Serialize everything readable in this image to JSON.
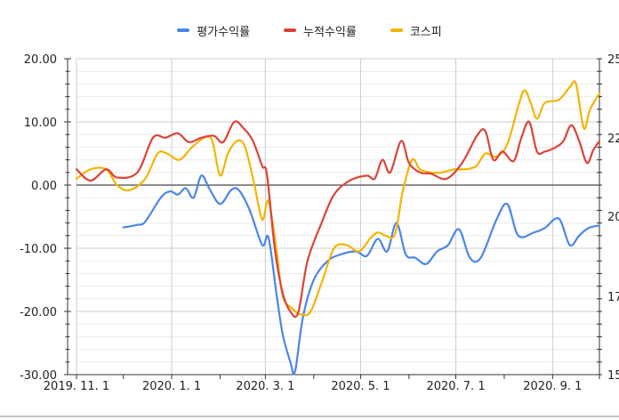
{
  "chart_data": {
    "type": "line",
    "title": "",
    "xlabel": "",
    "ylabel": "",
    "ylim": [
      -30,
      20
    ],
    "yticks": [
      -30,
      -20,
      -10,
      0,
      10,
      20
    ],
    "yticks_labels": [
      "-30.00",
      "-20.00",
      "-10.00",
      "0.00",
      "10.00",
      "20.00"
    ],
    "y2_ticks_visible": [
      "15",
      "17",
      "20",
      "22",
      "25"
    ],
    "x_range": [
      "2019-11-01",
      "2020-10-01"
    ],
    "x_ticks": [
      {
        "date": "2019-11-01",
        "label": "2019. 11. 1"
      },
      {
        "date": "2020-01-01",
        "label": "2020. 1. 1"
      },
      {
        "date": "2020-03-01",
        "label": "2020. 3. 1"
      },
      {
        "date": "2020-05-01",
        "label": "2020. 5. 1"
      },
      {
        "date": "2020-07-01",
        "label": "2020. 7. 1"
      },
      {
        "date": "2020-09-01",
        "label": "2020. 9. 1"
      }
    ],
    "grid": true,
    "legend_position": "top",
    "series": [
      {
        "name": "평가수익률",
        "color": "#4a86e8",
        "axis": "left",
        "points": [
          [
            "2019-12-01",
            -6.7
          ],
          [
            "2019-12-10",
            -6.3
          ],
          [
            "2019-12-15",
            -5.8
          ],
          [
            "2019-12-25",
            -2.0
          ],
          [
            "2019-12-31",
            -1.0
          ],
          [
            "2020-01-05",
            -1.5
          ],
          [
            "2020-01-10",
            -0.5
          ],
          [
            "2020-01-15",
            -2.0
          ],
          [
            "2020-01-20",
            1.5
          ],
          [
            "2020-01-25",
            -0.5
          ],
          [
            "2020-02-01",
            -3.0
          ],
          [
            "2020-02-08",
            -0.8
          ],
          [
            "2020-02-13",
            -0.8
          ],
          [
            "2020-02-20",
            -4.0
          ],
          [
            "2020-02-28",
            -9.5
          ],
          [
            "2020-03-03",
            -8.3
          ],
          [
            "2020-03-08",
            -17.0
          ],
          [
            "2020-03-12",
            -23.5
          ],
          [
            "2020-03-17",
            -28.0
          ],
          [
            "2020-03-20",
            -29.5
          ],
          [
            "2020-03-25",
            -21.0
          ],
          [
            "2020-04-01",
            -15.0
          ],
          [
            "2020-04-10",
            -12.0
          ],
          [
            "2020-04-18",
            -11.0
          ],
          [
            "2020-04-28",
            -10.5
          ],
          [
            "2020-05-05",
            -11.2
          ],
          [
            "2020-05-12",
            -8.5
          ],
          [
            "2020-05-18",
            -10.5
          ],
          [
            "2020-05-24",
            -6.0
          ],
          [
            "2020-05-30",
            -11.0
          ],
          [
            "2020-06-05",
            -11.5
          ],
          [
            "2020-06-12",
            -12.5
          ],
          [
            "2020-06-19",
            -10.5
          ],
          [
            "2020-06-26",
            -9.5
          ],
          [
            "2020-07-03",
            -7.0
          ],
          [
            "2020-07-10",
            -11.5
          ],
          [
            "2020-07-17",
            -11.5
          ],
          [
            "2020-07-27",
            -5.5
          ],
          [
            "2020-08-03",
            -3.0
          ],
          [
            "2020-08-10",
            -8.0
          ],
          [
            "2020-08-20",
            -7.5
          ],
          [
            "2020-08-27",
            -6.8
          ],
          [
            "2020-09-05",
            -5.3
          ],
          [
            "2020-09-12",
            -9.5
          ],
          [
            "2020-09-18",
            -8.0
          ],
          [
            "2020-09-24",
            -6.8
          ],
          [
            "2020-10-01",
            -6.4
          ]
        ]
      },
      {
        "name": "누적수익률",
        "color": "#db4437",
        "axis": "left",
        "points": [
          [
            "2019-11-01",
            2.5
          ],
          [
            "2019-11-10",
            0.7
          ],
          [
            "2019-11-20",
            2.5
          ],
          [
            "2019-11-27",
            1.2
          ],
          [
            "2019-12-10",
            2.0
          ],
          [
            "2019-12-20",
            7.5
          ],
          [
            "2019-12-28",
            7.5
          ],
          [
            "2020-01-05",
            8.2
          ],
          [
            "2020-01-12",
            6.8
          ],
          [
            "2020-01-20",
            7.5
          ],
          [
            "2020-01-28",
            7.8
          ],
          [
            "2020-02-03",
            6.8
          ],
          [
            "2020-02-10",
            10.0
          ],
          [
            "2020-02-16",
            9.0
          ],
          [
            "2020-02-22",
            7.0
          ],
          [
            "2020-02-28",
            3.0
          ],
          [
            "2020-03-02",
            1.7
          ],
          [
            "2020-03-07",
            -10.0
          ],
          [
            "2020-03-12",
            -17.0
          ],
          [
            "2020-03-17",
            -20.0
          ],
          [
            "2020-03-22",
            -20.2
          ],
          [
            "2020-03-28",
            -12.0
          ],
          [
            "2020-04-06",
            -6.0
          ],
          [
            "2020-04-14",
            -1.5
          ],
          [
            "2020-04-24",
            0.7
          ],
          [
            "2020-05-05",
            1.5
          ],
          [
            "2020-05-10",
            1.0
          ],
          [
            "2020-05-15",
            4.0
          ],
          [
            "2020-05-20",
            2.0
          ],
          [
            "2020-05-27",
            7.0
          ],
          [
            "2020-06-01",
            3.5
          ],
          [
            "2020-06-08",
            2.0
          ],
          [
            "2020-06-15",
            1.8
          ],
          [
            "2020-06-25",
            1.0
          ],
          [
            "2020-07-05",
            3.5
          ],
          [
            "2020-07-15",
            8.0
          ],
          [
            "2020-07-20",
            8.5
          ],
          [
            "2020-07-25",
            4.0
          ],
          [
            "2020-07-31",
            5.3
          ],
          [
            "2020-08-07",
            3.8
          ],
          [
            "2020-08-12",
            7.5
          ],
          [
            "2020-08-17",
            10.0
          ],
          [
            "2020-08-22",
            5.3
          ],
          [
            "2020-08-27",
            5.3
          ],
          [
            "2020-09-03",
            6.0
          ],
          [
            "2020-09-08",
            7.0
          ],
          [
            "2020-09-13",
            9.5
          ],
          [
            "2020-09-18",
            7.0
          ],
          [
            "2020-09-23",
            3.5
          ],
          [
            "2020-09-27",
            5.5
          ],
          [
            "2020-10-01",
            7.0
          ]
        ]
      },
      {
        "name": "코스피",
        "color": "#f4b400",
        "axis": "left",
        "points": [
          [
            "2019-11-01",
            1.0
          ],
          [
            "2019-11-10",
            2.5
          ],
          [
            "2019-11-20",
            2.5
          ],
          [
            "2019-11-27",
            0.0
          ],
          [
            "2019-12-05",
            -0.8
          ],
          [
            "2019-12-15",
            1.0
          ],
          [
            "2019-12-23",
            5.0
          ],
          [
            "2019-12-29",
            5.0
          ],
          [
            "2020-01-06",
            4.0
          ],
          [
            "2020-01-14",
            6.0
          ],
          [
            "2020-01-22",
            7.5
          ],
          [
            "2020-01-27",
            7.0
          ],
          [
            "2020-02-01",
            1.5
          ],
          [
            "2020-02-06",
            5.0
          ],
          [
            "2020-02-12",
            7.0
          ],
          [
            "2020-02-17",
            6.0
          ],
          [
            "2020-02-23",
            0.0
          ],
          [
            "2020-02-28",
            -5.5
          ],
          [
            "2020-03-03",
            -2.5
          ],
          [
            "2020-03-08",
            -10.0
          ],
          [
            "2020-03-12",
            -17.5
          ],
          [
            "2020-03-18",
            -19.5
          ],
          [
            "2020-03-24",
            -20.5
          ],
          [
            "2020-03-30",
            -20.0
          ],
          [
            "2020-04-06",
            -15.5
          ],
          [
            "2020-04-14",
            -10.0
          ],
          [
            "2020-04-22",
            -9.5
          ],
          [
            "2020-04-30",
            -10.5
          ],
          [
            "2020-05-07",
            -8.5
          ],
          [
            "2020-05-12",
            -7.5
          ],
          [
            "2020-05-17",
            -8.0
          ],
          [
            "2020-05-23",
            -7.8
          ],
          [
            "2020-05-28",
            -1.0
          ],
          [
            "2020-06-03",
            4.0
          ],
          [
            "2020-06-08",
            2.5
          ],
          [
            "2020-06-15",
            2.0
          ],
          [
            "2020-06-22",
            2.0
          ],
          [
            "2020-06-30",
            2.5
          ],
          [
            "2020-07-07",
            2.5
          ],
          [
            "2020-07-14",
            3.0
          ],
          [
            "2020-07-20",
            5.0
          ],
          [
            "2020-07-27",
            4.5
          ],
          [
            "2020-08-03",
            6.5
          ],
          [
            "2020-08-10",
            12.5
          ],
          [
            "2020-08-14",
            15.0
          ],
          [
            "2020-08-18",
            13.0
          ],
          [
            "2020-08-22",
            10.5
          ],
          [
            "2020-08-27",
            13.0
          ],
          [
            "2020-09-05",
            13.5
          ],
          [
            "2020-09-12",
            15.5
          ],
          [
            "2020-09-16",
            16.0
          ],
          [
            "2020-09-21",
            9.0
          ],
          [
            "2020-09-25",
            12.0
          ],
          [
            "2020-10-01",
            14.5
          ]
        ]
      }
    ]
  }
}
